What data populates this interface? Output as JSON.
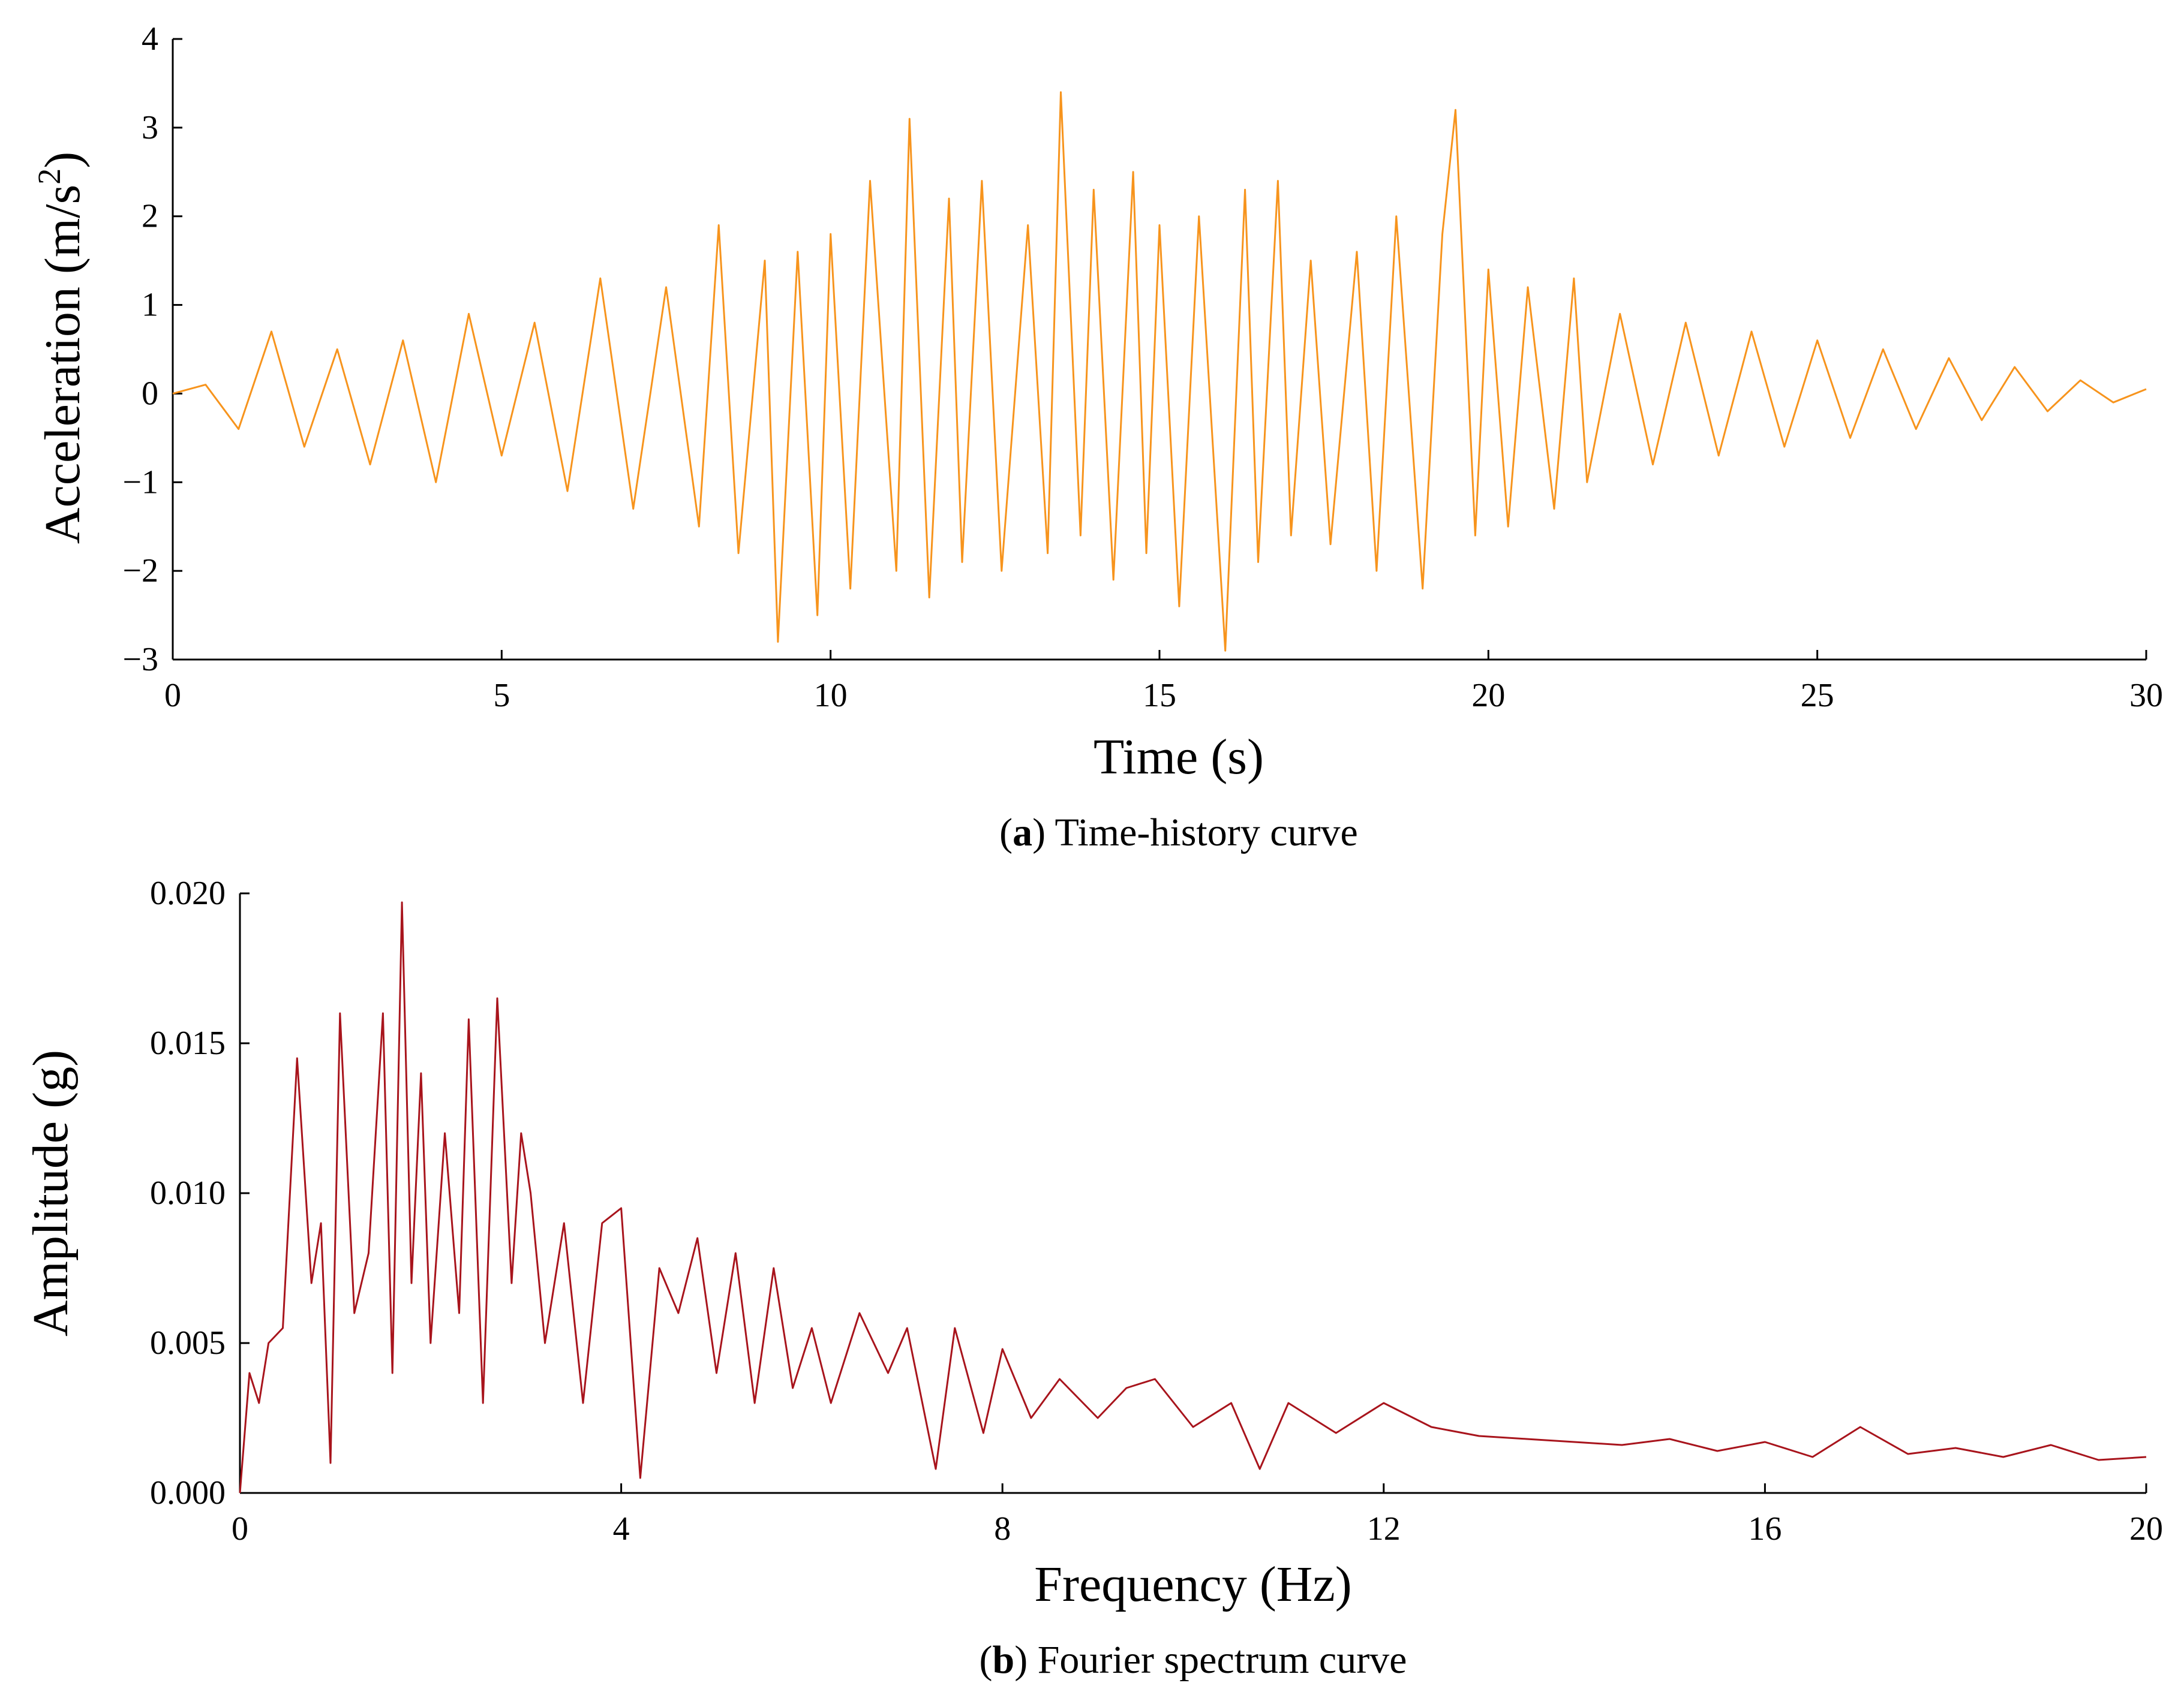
{
  "chart_data": [
    {
      "type": "line",
      "panel": "a",
      "xlabel": "Time (s)",
      "ylabel": "Acceleration (m/s²)",
      "ylabel_base": "Acceleration (m/s",
      "ylabel_sup": "2",
      "ylabel_close": ")",
      "xlim": [
        0,
        30
      ],
      "ylim": [
        -3,
        4
      ],
      "xticks": [
        0,
        5,
        10,
        15,
        20,
        25,
        30
      ],
      "xtick_labels": [
        "0",
        "5",
        "10",
        "15",
        "20",
        "25",
        "30"
      ],
      "yticks": [
        -3,
        -2,
        -1,
        0,
        1,
        2,
        3,
        4
      ],
      "ytick_labels": [
        "−3",
        "−2",
        "−1",
        "0",
        "1",
        "2",
        "3",
        "4"
      ],
      "line_color": "#f7941d",
      "caption_label": "a",
      "caption_text": "Time-history curve",
      "series": [
        {
          "name": "Acceleration",
          "x": [
            0,
            0.5,
            1,
            1.5,
            2,
            2.5,
            3,
            3.5,
            4,
            4.5,
            5,
            5.5,
            6,
            6.5,
            7,
            7.5,
            8,
            8.3,
            8.6,
            9,
            9.2,
            9.5,
            9.8,
            10,
            10.3,
            10.6,
            11,
            11.2,
            11.5,
            11.8,
            12,
            12.3,
            12.6,
            13,
            13.3,
            13.5,
            13.8,
            14,
            14.3,
            14.6,
            14.8,
            15,
            15.3,
            15.6,
            16,
            16.3,
            16.5,
            16.8,
            17,
            17.3,
            17.6,
            18,
            18.3,
            18.6,
            19,
            19.3,
            19.5,
            19.8,
            20,
            20.3,
            20.6,
            21,
            21.3,
            21.5,
            22,
            22.5,
            23,
            23.5,
            24,
            24.5,
            25,
            25.5,
            26,
            26.5,
            27,
            27.5,
            28,
            28.5,
            29,
            29.5,
            30
          ],
          "y": [
            0,
            0.1,
            -0.4,
            0.7,
            -0.6,
            0.5,
            -0.8,
            0.6,
            -1.0,
            0.9,
            -0.7,
            0.8,
            -1.1,
            1.3,
            -1.3,
            1.2,
            -1.5,
            1.9,
            -1.8,
            1.5,
            -2.8,
            1.6,
            -2.5,
            1.8,
            -2.2,
            2.4,
            -2.0,
            3.1,
            -2.3,
            2.2,
            -1.9,
            2.4,
            -2.0,
            1.9,
            -1.8,
            3.4,
            -1.6,
            2.3,
            -2.1,
            2.5,
            -1.8,
            1.9,
            -2.4,
            2.0,
            -2.9,
            2.3,
            -1.9,
            2.4,
            -1.6,
            1.5,
            -1.7,
            1.6,
            -2.0,
            2.0,
            -2.2,
            1.8,
            3.2,
            -1.6,
            1.4,
            -1.5,
            1.2,
            -1.3,
            1.3,
            -1.0,
            0.9,
            -0.8,
            0.8,
            -0.7,
            0.7,
            -0.6,
            0.6,
            -0.5,
            0.5,
            -0.4,
            0.4,
            -0.3,
            0.3,
            -0.2,
            0.15,
            -0.1,
            0.05
          ]
        }
      ]
    },
    {
      "type": "line",
      "panel": "b",
      "xlabel": "Frequency (Hz)",
      "ylabel": "Amplitude (g)",
      "xlim": [
        0,
        20
      ],
      "ylim": [
        0,
        0.02
      ],
      "xticks": [
        0,
        4,
        8,
        12,
        16,
        20
      ],
      "xtick_labels": [
        "0",
        "4",
        "8",
        "12",
        "16",
        "20"
      ],
      "yticks": [
        0,
        0.005,
        0.01,
        0.015,
        0.02
      ],
      "ytick_labels": [
        "0.000",
        "0.005",
        "0.010",
        "0.015",
        "0.020"
      ],
      "line_color": "#a8141c",
      "caption_label": "b",
      "caption_text": "Fourier spectrum curve",
      "series": [
        {
          "name": "Fourier amplitude",
          "x": [
            0,
            0.1,
            0.2,
            0.3,
            0.45,
            0.6,
            0.75,
            0.85,
            0.95,
            1.05,
            1.2,
            1.35,
            1.5,
            1.6,
            1.7,
            1.8,
            1.9,
            2.0,
            2.15,
            2.3,
            2.4,
            2.55,
            2.7,
            2.85,
            2.95,
            3.05,
            3.2,
            3.4,
            3.6,
            3.8,
            4.0,
            4.2,
            4.4,
            4.6,
            4.8,
            5.0,
            5.2,
            5.4,
            5.6,
            5.8,
            6.0,
            6.2,
            6.5,
            6.8,
            7.0,
            7.3,
            7.5,
            7.8,
            8.0,
            8.3,
            8.6,
            9.0,
            9.3,
            9.6,
            10.0,
            10.4,
            10.7,
            11.0,
            11.5,
            12.0,
            12.5,
            13.0,
            13.5,
            14.0,
            14.5,
            15.0,
            15.5,
            16.0,
            16.5,
            17.0,
            17.5,
            18.0,
            18.5,
            19.0,
            19.5,
            20.0
          ],
          "y": [
            0.0,
            0.004,
            0.003,
            0.005,
            0.0055,
            0.0145,
            0.007,
            0.009,
            0.001,
            0.016,
            0.006,
            0.008,
            0.016,
            0.004,
            0.0197,
            0.007,
            0.014,
            0.005,
            0.012,
            0.006,
            0.0158,
            0.003,
            0.0165,
            0.007,
            0.012,
            0.01,
            0.005,
            0.009,
            0.003,
            0.009,
            0.0095,
            0.0005,
            0.0075,
            0.006,
            0.0085,
            0.004,
            0.008,
            0.003,
            0.0075,
            0.0035,
            0.0055,
            0.003,
            0.006,
            0.004,
            0.0055,
            0.0008,
            0.0055,
            0.002,
            0.0048,
            0.0025,
            0.0038,
            0.0025,
            0.0035,
            0.0038,
            0.0022,
            0.003,
            0.0008,
            0.003,
            0.002,
            0.003,
            0.0022,
            0.0019,
            0.0018,
            0.0017,
            0.0016,
            0.0018,
            0.0014,
            0.0017,
            0.0012,
            0.0022,
            0.0013,
            0.0015,
            0.0012,
            0.0016,
            0.0011,
            0.0012
          ]
        }
      ]
    }
  ]
}
